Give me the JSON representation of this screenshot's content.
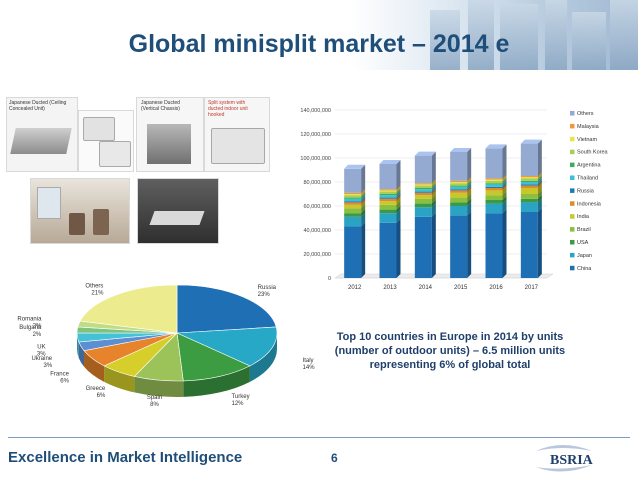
{
  "slide": {
    "title": "Global minisplit market – 2014 e",
    "footer": "Excellence in Market Intelligence",
    "page_number": "6",
    "logo_text": "BSRIA",
    "note": [
      "Top 10 countries in Europe in 2014 by units",
      "(number of outdoor units) – 6.5 million units",
      "representing 6% of global total"
    ]
  },
  "photos": {
    "caption1": [
      "Japanese Ducted (Ceiling",
      "Concealed Unit)"
    ],
    "caption2": [
      "Japanese Ducted",
      "(Vertical Chassis)"
    ],
    "caption3": [
      "Split system with",
      "ducted indoor unit",
      "hooked"
    ]
  },
  "chart_data": [
    {
      "type": "bar",
      "stacked": true,
      "categories": [
        "2012",
        "2013",
        "2014",
        "2015",
        "2016",
        "2017"
      ],
      "ylim": [
        0,
        140000000
      ],
      "yticks": [
        0,
        20000000,
        40000000,
        60000000,
        80000000,
        100000000,
        120000000,
        140000000
      ],
      "ytick_labels": [
        "0",
        "20,000,000",
        "40,000,000",
        "60,000,000",
        "80,000,000",
        "100,000,000",
        "120,000,000",
        "140,000,000"
      ],
      "grid": true,
      "legend_position": "right",
      "series": [
        {
          "name": "China",
          "color": "#1f6fb5",
          "values": [
            43000000,
            46000000,
            51000000,
            52000000,
            54000000,
            55000000
          ]
        },
        {
          "name": "Japan",
          "color": "#2aa3c4",
          "values": [
            8000000,
            8000000,
            8000000,
            8000000,
            8000000,
            8000000
          ]
        },
        {
          "name": "USA",
          "color": "#3a9a47",
          "values": [
            3000000,
            3000000,
            3000000,
            3000000,
            3000000,
            3000000
          ]
        },
        {
          "name": "Brazil",
          "color": "#8bbf3f",
          "values": [
            4000000,
            4000000,
            4000000,
            4000000,
            4000000,
            4000000
          ]
        },
        {
          "name": "India",
          "color": "#c9c82a",
          "values": [
            3000000,
            3000000,
            3000000,
            4000000,
            4000000,
            5000000
          ]
        },
        {
          "name": "Indonesia",
          "color": "#e08a2c",
          "values": [
            2000000,
            2000000,
            2000000,
            2000000,
            2000000,
            2000000
          ]
        },
        {
          "name": "Russia",
          "color": "#1e7bb0",
          "values": [
            1000000,
            1000000,
            1000000,
            1000000,
            1000000,
            1000000
          ]
        },
        {
          "name": "Thailand",
          "color": "#3bc1d6",
          "values": [
            2000000,
            2000000,
            2000000,
            2000000,
            2000000,
            2000000
          ]
        },
        {
          "name": "Argentina",
          "color": "#3fae5a",
          "values": [
            1000000,
            1000000,
            1000000,
            1000000,
            1000000,
            1000000
          ]
        },
        {
          "name": "South Korea",
          "color": "#a6cf5a",
          "values": [
            2000000,
            2000000,
            2000000,
            2000000,
            2000000,
            2000000
          ]
        },
        {
          "name": "Vietnam",
          "color": "#e6e645",
          "values": [
            1000000,
            1000000,
            1000000,
            1000000,
            1000000,
            1000000
          ]
        },
        {
          "name": "Malaysia",
          "color": "#ef9a3a",
          "values": [
            1000000,
            1000000,
            1000000,
            1000000,
            1000000,
            1000000
          ]
        },
        {
          "name": "Others",
          "color": "#94aad0",
          "values": [
            20000000,
            21000000,
            23000000,
            24000000,
            25000000,
            27000000
          ]
        }
      ]
    },
    {
      "type": "pie",
      "slices": [
        {
          "name": "Russia",
          "value": 23,
          "label": "23%",
          "color": "#1f6fb5"
        },
        {
          "name": "Italy",
          "value": 14,
          "label": "14%",
          "color": "#27a8c7"
        },
        {
          "name": "Turkey",
          "value": 12,
          "label": "12%",
          "color": "#3c9c42"
        },
        {
          "name": "Spain",
          "value": 8,
          "label": "8%",
          "color": "#9cc35a"
        },
        {
          "name": "Greece",
          "value": 6,
          "label": "6%",
          "color": "#d6cf2b"
        },
        {
          "name": "France",
          "value": 6,
          "label": "6%",
          "color": "#e6832b"
        },
        {
          "name": "Ukraine",
          "value": 3,
          "label": "3%",
          "color": "#5b8fd1"
        },
        {
          "name": "UK",
          "value": 3,
          "label": "3%",
          "color": "#46c2d8"
        },
        {
          "name": "Bulgaria",
          "value": 2,
          "label": "2%",
          "color": "#7ec47c"
        },
        {
          "name": "Romania",
          "value": 2,
          "label": "2%",
          "color": "#c2dc83"
        },
        {
          "name": "Others",
          "value": 21,
          "label": "21%",
          "color": "#ecec8f"
        }
      ]
    }
  ]
}
